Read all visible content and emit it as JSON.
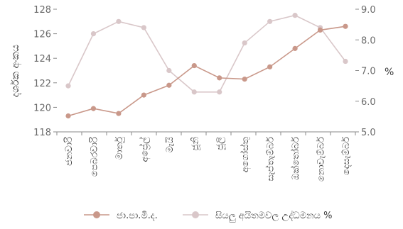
{
  "chart_data": {
    "type": "line",
    "categories": [
      "ජනවාරි",
      "පෙබරවාරි",
      "මාර්තු",
      "අප්‍රේල්",
      "මැයි",
      "ජූනි",
      "ජූලි",
      "අගෝස්තු",
      "සැප්තැම්බර්",
      "ඔක්තෝබර්",
      "නොවැම්බර්",
      "දෙසැම්බර්"
    ],
    "series": [
      {
        "name": "ජා.පා.මි.ද.",
        "axis": "left",
        "color": "#c9988a",
        "values": [
          119.3,
          119.9,
          119.5,
          121.0,
          121.8,
          123.4,
          122.4,
          122.3,
          123.3,
          124.8,
          126.3,
          126.6
        ]
      },
      {
        "name": "සියලු අයිතමවල උද්ධමනය %",
        "axis": "right",
        "color": "#d9c7c9",
        "values": [
          6.5,
          8.2,
          8.6,
          8.4,
          7.0,
          6.3,
          6.3,
          7.9,
          8.6,
          8.8,
          8.4,
          7.3
        ]
      }
    ],
    "y_left": {
      "label": "දර්ශක අංකය",
      "range": [
        118,
        128
      ],
      "ticks": [
        "118",
        "120",
        "122",
        "124",
        "126",
        "128"
      ]
    },
    "y_right": {
      "label": "%",
      "range": [
        5.0,
        9.0
      ],
      "ticks": [
        "5.0",
        "6.0",
        "7.0",
        "8.0",
        "9.0"
      ]
    },
    "grid": false,
    "legend_position": "bottom"
  }
}
